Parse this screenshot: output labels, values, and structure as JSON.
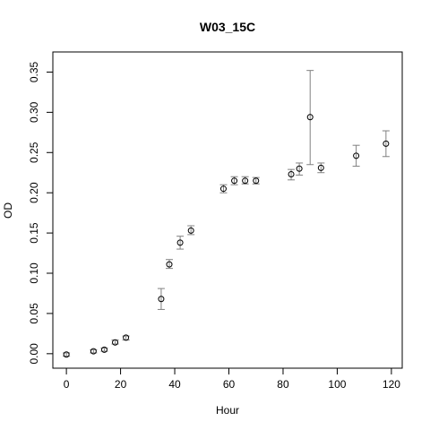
{
  "chart_data": {
    "type": "scatter",
    "title": "W03_15C",
    "xlabel": "Hour",
    "ylabel": "OD",
    "xlim": [
      -5,
      124
    ],
    "ylim": [
      -0.018,
      0.375
    ],
    "x_ticks": [
      0,
      20,
      40,
      60,
      80,
      100,
      120
    ],
    "y_ticks": [
      0.0,
      0.05,
      0.1,
      0.15,
      0.2,
      0.25,
      0.3,
      0.35
    ],
    "x_tick_labels": [
      "0",
      "20",
      "40",
      "60",
      "80",
      "100",
      "120"
    ],
    "y_tick_labels": [
      "0.00",
      "0.05",
      "0.10",
      "0.15",
      "0.20",
      "0.25",
      "0.30",
      "0.35"
    ],
    "grid": false,
    "legend": "none",
    "error_bars": true,
    "colors": {
      "points": "#000000",
      "error_bars": "#808080",
      "frame": "#000000"
    },
    "points": [
      {
        "x": 0,
        "y": -0.001,
        "lo": -0.003,
        "hi": 0.001
      },
      {
        "x": 10,
        "y": 0.003,
        "lo": 0.001,
        "hi": 0.005
      },
      {
        "x": 14,
        "y": 0.005,
        "lo": 0.003,
        "hi": 0.007
      },
      {
        "x": 18,
        "y": 0.014,
        "lo": 0.012,
        "hi": 0.017
      },
      {
        "x": 22,
        "y": 0.02,
        "lo": 0.017,
        "hi": 0.022
      },
      {
        "x": 35,
        "y": 0.068,
        "lo": 0.055,
        "hi": 0.081
      },
      {
        "x": 38,
        "y": 0.111,
        "lo": 0.106,
        "hi": 0.117
      },
      {
        "x": 42,
        "y": 0.138,
        "lo": 0.13,
        "hi": 0.146
      },
      {
        "x": 46,
        "y": 0.153,
        "lo": 0.148,
        "hi": 0.159
      },
      {
        "x": 58,
        "y": 0.205,
        "lo": 0.2,
        "hi": 0.21
      },
      {
        "x": 62,
        "y": 0.215,
        "lo": 0.21,
        "hi": 0.22
      },
      {
        "x": 66,
        "y": 0.215,
        "lo": 0.211,
        "hi": 0.22
      },
      {
        "x": 70,
        "y": 0.215,
        "lo": 0.211,
        "hi": 0.219
      },
      {
        "x": 83,
        "y": 0.223,
        "lo": 0.216,
        "hi": 0.229
      },
      {
        "x": 86,
        "y": 0.23,
        "lo": 0.222,
        "hi": 0.237
      },
      {
        "x": 90,
        "y": 0.294,
        "lo": 0.235,
        "hi": 0.352
      },
      {
        "x": 94,
        "y": 0.231,
        "lo": 0.225,
        "hi": 0.237
      },
      {
        "x": 107,
        "y": 0.246,
        "lo": 0.233,
        "hi": 0.259
      },
      {
        "x": 118,
        "y": 0.261,
        "lo": 0.245,
        "hi": 0.277
      }
    ]
  }
}
